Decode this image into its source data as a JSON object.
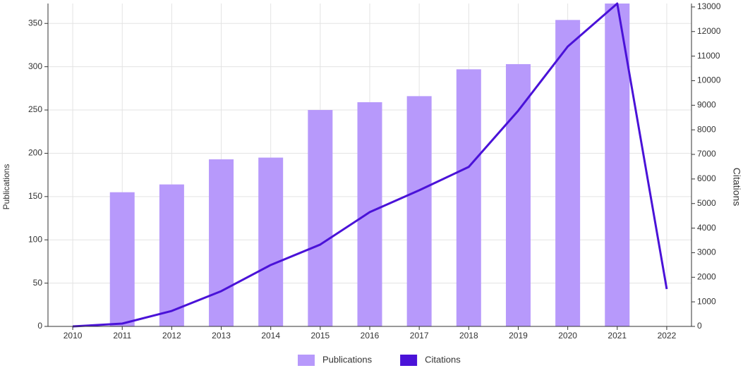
{
  "chart_data": {
    "type": "bar-line",
    "categories": [
      "2010",
      "2011",
      "2012",
      "2013",
      "2014",
      "2015",
      "2016",
      "2017",
      "2018",
      "2019",
      "2020",
      "2021",
      "2022"
    ],
    "series": [
      {
        "name": "Publications",
        "type": "bar",
        "color": "#b799fb",
        "values": [
          0,
          155,
          164,
          193,
          195,
          250,
          259,
          266,
          297,
          303,
          354,
          373,
          0
        ]
      },
      {
        "name": "Citations",
        "type": "line",
        "axis": "y2",
        "color": "#4a12d8",
        "values": [
          0,
          115,
          630,
          1435,
          2500,
          3330,
          4650,
          5540,
          6490,
          8780,
          11390,
          13140,
          1520
        ]
      }
    ],
    "ylabel": "Publications",
    "y2label": "Citations",
    "ylim": [
      0,
      373
    ],
    "yticks": [
      0,
      50,
      100,
      150,
      200,
      250,
      300,
      350
    ],
    "y2lim": [
      0,
      13140
    ],
    "y2ticks": [
      0,
      1000,
      2000,
      3000,
      4000,
      5000,
      6000,
      7000,
      8000,
      9000,
      10000,
      11000,
      12000,
      13000
    ],
    "grid": true,
    "legend": "bottom"
  }
}
